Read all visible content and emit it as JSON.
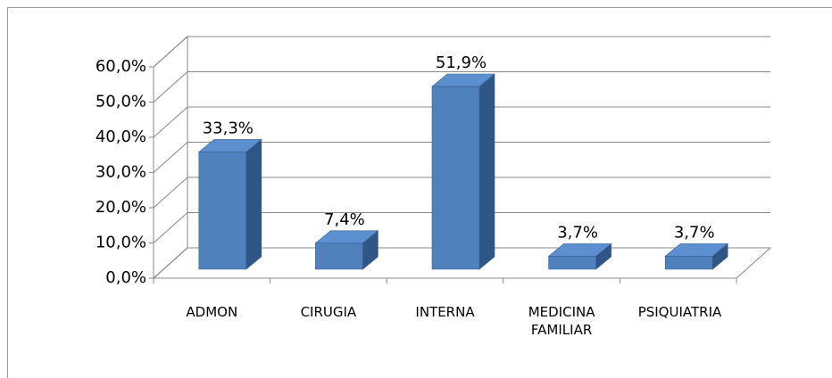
{
  "chart_data": {
    "type": "bar3d",
    "categories": [
      "ADMON",
      "CIRUGIA",
      "INTERNA",
      "MEDICINA FAMILIAR",
      "PSIQUIATRIA"
    ],
    "values": [
      33.3,
      7.4,
      51.9,
      3.7,
      3.7
    ],
    "value_labels": [
      "33,3%",
      "7,4%",
      "51,9%",
      "3,7%",
      "3,7%"
    ],
    "color": "#4f81bd",
    "ylim": [
      0,
      60
    ],
    "yticks": [
      {
        "value": 0,
        "label": "0,0%"
      },
      {
        "value": 10,
        "label": "10,0%"
      },
      {
        "value": 20,
        "label": "20,0%"
      },
      {
        "value": 30,
        "label": "30,0%"
      },
      {
        "value": 40,
        "label": "40,0%"
      },
      {
        "value": 50,
        "label": "50,0%"
      },
      {
        "value": 60,
        "label": "60,0%"
      }
    ],
    "grid": true
  }
}
